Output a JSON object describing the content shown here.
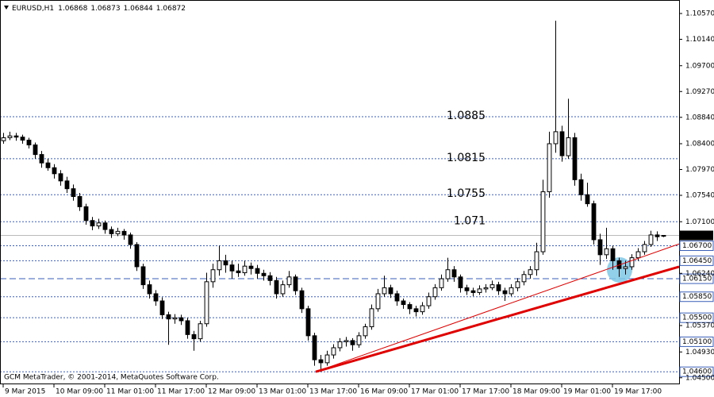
{
  "chart_data": {
    "type": "candlestick",
    "title": "EURUSD,H1",
    "copyright": "GCM MetaTrader, © 2001-2014, MetaQuotes Software Corp.",
    "candles": [
      [
        1.0845,
        1.0858,
        1.084,
        1.085
      ],
      [
        1.085,
        1.086,
        1.0846,
        1.0853
      ],
      [
        1.0853,
        1.0858,
        1.0845,
        1.0851
      ],
      [
        1.0851,
        1.0855,
        1.084,
        1.0846
      ],
      [
        1.0846,
        1.085,
        1.0832,
        1.0838
      ],
      [
        1.0838,
        1.0842,
        1.0815,
        1.0822
      ],
      [
        1.0822,
        1.0828,
        1.08,
        1.0808
      ],
      [
        1.0808,
        1.0815,
        1.0795,
        1.08
      ],
      [
        1.08,
        1.0806,
        1.0782,
        1.079
      ],
      [
        1.079,
        1.0796,
        1.077,
        1.0778
      ],
      [
        1.0778,
        1.0785,
        1.0758,
        1.0765
      ],
      [
        1.0765,
        1.0772,
        1.0745,
        1.0752
      ],
      [
        1.0752,
        1.0758,
        1.0728,
        1.0735
      ],
      [
        1.0735,
        1.074,
        1.0705,
        1.0712
      ],
      [
        1.0712,
        1.0718,
        1.0696,
        1.0703
      ],
      [
        1.0703,
        1.0715,
        1.0698,
        1.0708
      ],
      [
        1.0708,
        1.0712,
        1.069,
        1.0697
      ],
      [
        1.0697,
        1.0702,
        1.0683,
        1.069
      ],
      [
        1.069,
        1.07,
        1.0686,
        1.0694
      ],
      [
        1.0694,
        1.0698,
        1.068,
        1.0688
      ],
      [
        1.0688,
        1.0692,
        1.0665,
        1.0672
      ],
      [
        1.0672,
        1.0676,
        1.0628,
        1.0635
      ],
      [
        1.0635,
        1.064,
        1.0598,
        1.0605
      ],
      [
        1.0605,
        1.0612,
        1.0582,
        1.059
      ],
      [
        1.059,
        1.0596,
        1.057,
        1.0578
      ],
      [
        1.0578,
        1.0584,
        1.0548,
        1.0555
      ],
      [
        1.0555,
        1.056,
        1.0505,
        1.0548
      ],
      [
        1.0548,
        1.0556,
        1.054,
        1.055
      ],
      [
        1.055,
        1.0555,
        1.0538,
        1.0545
      ],
      [
        1.0545,
        1.055,
        1.0515,
        1.0522
      ],
      [
        1.0522,
        1.0528,
        1.0495,
        1.0515
      ],
      [
        1.0515,
        1.0545,
        1.051,
        1.054
      ],
      [
        1.054,
        1.0625,
        1.0535,
        1.061
      ],
      [
        1.061,
        1.064,
        1.06,
        1.063
      ],
      [
        1.063,
        1.067,
        1.062,
        1.0645
      ],
      [
        1.0645,
        1.0655,
        1.0625,
        1.0638
      ],
      [
        1.0638,
        1.0645,
        1.0615,
        1.0628
      ],
      [
        1.0628,
        1.064,
        1.0618,
        1.0625
      ],
      [
        1.0625,
        1.0645,
        1.062,
        1.0636
      ],
      [
        1.0636,
        1.0642,
        1.0622,
        1.0632
      ],
      [
        1.0632,
        1.0638,
        1.0615,
        1.0624
      ],
      [
        1.0624,
        1.063,
        1.0612,
        1.062
      ],
      [
        1.062,
        1.0626,
        1.0604,
        1.0612
      ],
      [
        1.0612,
        1.0618,
        1.0582,
        1.059
      ],
      [
        1.059,
        1.0612,
        1.0585,
        1.0605
      ],
      [
        1.0605,
        1.0628,
        1.06,
        1.0618
      ],
      [
        1.0618,
        1.0622,
        1.0588,
        1.0595
      ],
      [
        1.0595,
        1.06,
        1.0558,
        1.0565
      ],
      [
        1.0565,
        1.057,
        1.0512,
        1.052
      ],
      [
        1.052,
        1.0525,
        1.047,
        1.048
      ],
      [
        1.048,
        1.0488,
        1.046,
        1.0475
      ],
      [
        1.0475,
        1.0495,
        1.047,
        1.0488
      ],
      [
        1.0488,
        1.0506,
        1.0482,
        1.05
      ],
      [
        1.05,
        1.0516,
        1.0494,
        1.051
      ],
      [
        1.051,
        1.0518,
        1.0502,
        1.0512
      ],
      [
        1.0512,
        1.0516,
        1.0495,
        1.0505
      ],
      [
        1.0505,
        1.0526,
        1.05,
        1.052
      ],
      [
        1.052,
        1.054,
        1.0515,
        1.0535
      ],
      [
        1.0535,
        1.0572,
        1.053,
        1.0565
      ],
      [
        1.0565,
        1.0598,
        1.056,
        1.059
      ],
      [
        1.059,
        1.062,
        1.0585,
        1.06
      ],
      [
        1.06,
        1.0605,
        1.0583,
        1.059
      ],
      [
        1.059,
        1.0595,
        1.057,
        1.0578
      ],
      [
        1.0578,
        1.0582,
        1.0565,
        1.0572
      ],
      [
        1.0572,
        1.0576,
        1.0556,
        1.0565
      ],
      [
        1.0565,
        1.057,
        1.0552,
        1.056
      ],
      [
        1.056,
        1.0576,
        1.0555,
        1.057
      ],
      [
        1.057,
        1.0592,
        1.0565,
        1.0585
      ],
      [
        1.0585,
        1.0606,
        1.058,
        1.06
      ],
      [
        1.06,
        1.0622,
        1.0595,
        1.0615
      ],
      [
        1.0615,
        1.065,
        1.061,
        1.063
      ],
      [
        1.063,
        1.0636,
        1.061,
        1.0618
      ],
      [
        1.0618,
        1.0622,
        1.0592,
        1.06
      ],
      [
        1.06,
        1.0605,
        1.0588,
        1.0595
      ],
      [
        1.0595,
        1.06,
        1.0586,
        1.0592
      ],
      [
        1.0592,
        1.0604,
        1.0588,
        1.0598
      ],
      [
        1.0598,
        1.0606,
        1.0592,
        1.06
      ],
      [
        1.06,
        1.0612,
        1.0596,
        1.0605
      ],
      [
        1.0605,
        1.061,
        1.0588,
        1.0595
      ],
      [
        1.0595,
        1.06,
        1.0578,
        1.059
      ],
      [
        1.059,
        1.0606,
        1.0586,
        1.06
      ],
      [
        1.06,
        1.0616,
        1.0594,
        1.061
      ],
      [
        1.061,
        1.0628,
        1.0604,
        1.0622
      ],
      [
        1.0622,
        1.0636,
        1.0615,
        1.063
      ],
      [
        1.063,
        1.0675,
        1.062,
        1.066
      ],
      [
        1.066,
        1.078,
        1.0655,
        1.076
      ],
      [
        1.076,
        1.086,
        1.075,
        1.084
      ],
      [
        1.084,
        1.1045,
        1.0825,
        1.086
      ],
      [
        1.086,
        1.087,
        1.081,
        1.082
      ],
      [
        1.082,
        1.0915,
        1.0815,
        1.085
      ],
      [
        1.085,
        1.0858,
        1.077,
        1.078
      ],
      [
        1.078,
        1.079,
        1.0745,
        1.0755
      ],
      [
        1.0755,
        1.0775,
        1.0735,
        1.074
      ],
      [
        1.074,
        1.0745,
        1.0672,
        1.068
      ],
      [
        1.068,
        1.069,
        1.0638,
        1.0655
      ],
      [
        1.0655,
        1.07,
        1.0648,
        1.0665
      ],
      [
        1.0665,
        1.067,
        1.063,
        1.0645
      ],
      [
        1.0645,
        1.065,
        1.0618,
        1.0632
      ],
      [
        1.0632,
        1.0645,
        1.0622,
        1.0635
      ],
      [
        1.0635,
        1.0656,
        1.063,
        1.065
      ],
      [
        1.065,
        1.0666,
        1.0645,
        1.066
      ],
      [
        1.066,
        1.0678,
        1.0655,
        1.0672
      ],
      [
        1.0672,
        1.0695,
        1.0668,
        1.0688
      ],
      [
        1.0688,
        1.0694,
        1.0678,
        1.0685
      ],
      [
        1.06868,
        1.06873,
        1.06844,
        1.06872
      ]
    ],
    "xlim": [
      -0.5,
      106.5
    ],
    "ylim": [
      1.04391,
      1.10795
    ],
    "xticks": [
      {
        "value": 0,
        "label": "9 Mar 2015"
      },
      {
        "value": 8,
        "label": "10 Mar 09:00"
      },
      {
        "value": 16,
        "label": "11 Mar 01:00"
      },
      {
        "value": 24,
        "label": "11 Mar 17:00"
      },
      {
        "value": 32,
        "label": "12 Mar 09:00"
      },
      {
        "value": 40,
        "label": "13 Mar 01:00"
      },
      {
        "value": 48,
        "label": "13 Mar 17:00"
      },
      {
        "value": 56,
        "label": "16 Mar 09:00"
      },
      {
        "value": 64,
        "label": "17 Mar 01:00"
      },
      {
        "value": 72,
        "label": "17 Mar 17:00"
      },
      {
        "value": 80,
        "label": "18 Mar 09:00"
      },
      {
        "value": 88,
        "label": "19 Mar 01:00"
      },
      {
        "value": 96,
        "label": "19 Mar 17:00"
      }
    ],
    "yticks": [
      {
        "value": 1.1057,
        "label": "1.10570"
      },
      {
        "value": 1.1014,
        "label": "1.10140"
      },
      {
        "value": 1.097,
        "label": "1.09700"
      },
      {
        "value": 1.0927,
        "label": "1.09270"
      },
      {
        "value": 1.0884,
        "label": "1.08840"
      },
      {
        "value": 1.084,
        "label": "1.08400"
      },
      {
        "value": 1.0797,
        "label": "1.07970"
      },
      {
        "value": 1.0754,
        "label": "1.07540"
      },
      {
        "value": 1.071,
        "label": "1.07100"
      },
      {
        "value": 1.0624,
        "label": "1.06240"
      },
      {
        "value": 1.0537,
        "label": "1.05370"
      },
      {
        "value": 1.0493,
        "label": "1.04930"
      },
      {
        "value": 1.045,
        "label": "1.04500"
      }
    ],
    "levels": [
      1.0885,
      1.0815,
      1.0755,
      1.071
    ],
    "price_lines": [
      {
        "value": 1.067,
        "label": "1.06700"
      },
      {
        "value": 1.0645,
        "label": "1.06450"
      },
      {
        "value": 1.0615,
        "label": "1.06150"
      },
      {
        "value": 1.0585,
        "label": "1.05850"
      },
      {
        "value": 1.055,
        "label": "1.05500"
      },
      {
        "value": 1.051,
        "label": "1.05100"
      },
      {
        "value": 1.046,
        "label": "1.04600"
      }
    ],
    "level_color": "#3a5fb8",
    "trendlines": [
      {
        "start": [
          49.25,
          1.046
        ],
        "end": [
          106.5,
          1.0673
        ],
        "color": "#e00000",
        "width": 1
      },
      {
        "start": [
          49.25,
          1.046
        ],
        "end": [
          106.5,
          1.0635
        ],
        "color": "#e00000",
        "width": 3
      }
    ]
  }
}
